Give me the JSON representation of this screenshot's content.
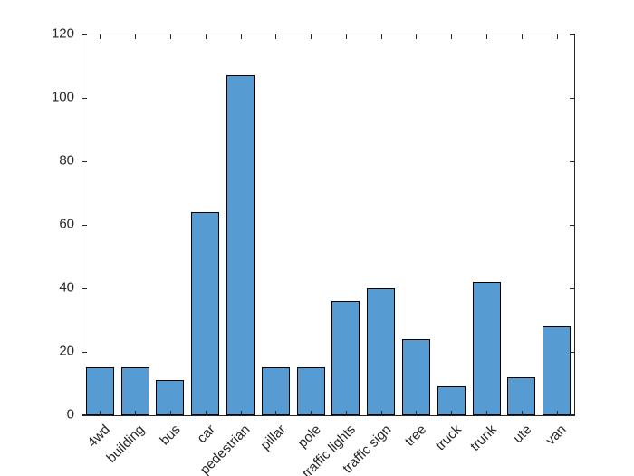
{
  "chart_data": {
    "type": "bar",
    "title": "",
    "xlabel": "",
    "ylabel": "",
    "categories": [
      "4wd",
      "building",
      "bus",
      "car",
      "pedestrian",
      "pillar",
      "pole",
      "traffic lights",
      "traffic sign",
      "tree",
      "truck",
      "trunk",
      "ute",
      "van"
    ],
    "values": [
      15,
      15,
      11,
      64,
      107,
      15,
      15,
      36,
      40,
      24,
      9,
      42,
      12,
      28
    ],
    "ylim": [
      0,
      120
    ],
    "yticks": [
      0,
      20,
      40,
      60,
      80,
      100,
      120
    ],
    "grid": false,
    "legend": "none",
    "bar_color": "#569CD2",
    "bar_edge_color": "#000000",
    "axis_color": "#262626",
    "background": "#FFFFFF"
  }
}
